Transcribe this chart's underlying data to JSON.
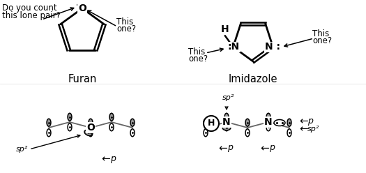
{
  "bg_color": "#ffffff",
  "furan_label": "Furan",
  "imidazole_label": "Imidazole",
  "question_text1": "Do you count",
  "question_text2": "this lone pair?",
  "this_one": "This\none?",
  "sp2_label": "sp²",
  "p_label": "p",
  "gray_orb": "#999999",
  "dark_gray": "#666666"
}
